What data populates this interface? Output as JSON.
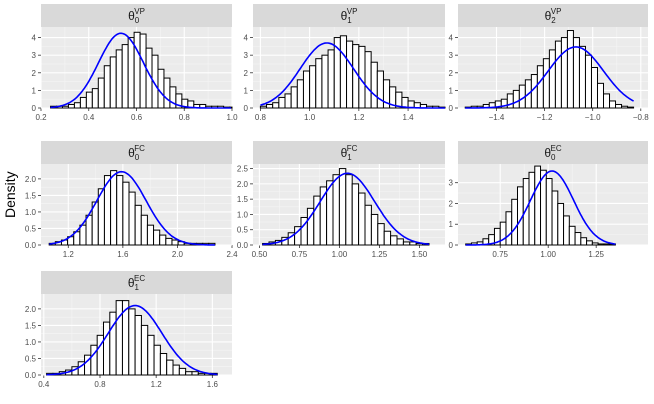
{
  "figure": {
    "ylabel": "Density"
  },
  "chart_data": [
    {
      "type": "histogram",
      "title_base": "θ",
      "title_sub": "0",
      "title_sup": "VP",
      "xlim": [
        0.2,
        1.0
      ],
      "ylim": [
        0,
        4.6
      ],
      "xticks": [
        0.2,
        0.4,
        0.6,
        0.8,
        1.0
      ],
      "xtick_labels": [
        "0.2",
        "0.4",
        "0.6",
        "0.8",
        "1.0"
      ],
      "yticks": [
        0,
        1,
        2,
        3,
        4
      ],
      "ytick_labels": [
        "0",
        "1",
        "2",
        "3",
        "4"
      ],
      "bins": {
        "start": 0.24,
        "width": 0.025,
        "heights": [
          0.1,
          0.1,
          0.1,
          0.2,
          0.3,
          0.6,
          0.9,
          1.1,
          1.7,
          2.4,
          2.9,
          3.3,
          3.6,
          4.0,
          4.3,
          4.2,
          3.4,
          3.0,
          2.2,
          1.7,
          1.2,
          0.8,
          0.5,
          0.4,
          0.2,
          0.2,
          0.1,
          0.1,
          0.1,
          0.05,
          0.05
        ]
      },
      "density": {
        "mean": 0.535,
        "sd": 0.094,
        "scale": 1.0
      }
    },
    {
      "type": "histogram",
      "title_base": "θ",
      "title_sub": "1",
      "title_sup": "VP",
      "xlim": [
        0.77,
        1.55
      ],
      "ylim": [
        0,
        4.6
      ],
      "xticks": [
        0.8,
        1.0,
        1.2,
        1.4
      ],
      "xtick_labels": [
        "0.8",
        "1.0",
        "1.2",
        "1.4"
      ],
      "yticks": [
        0,
        1,
        2,
        3,
        4
      ],
      "ytick_labels": [
        "0",
        "1",
        "2",
        "3",
        "4"
      ],
      "bins": {
        "start": 0.8,
        "width": 0.025,
        "heights": [
          0.1,
          0.2,
          0.3,
          0.6,
          0.8,
          1.2,
          1.6,
          2.1,
          2.4,
          2.8,
          3.0,
          3.3,
          4.0,
          4.1,
          3.8,
          3.6,
          3.5,
          3.2,
          2.6,
          2.1,
          1.6,
          1.2,
          0.9,
          0.6,
          0.4,
          0.3,
          0.2,
          0.1,
          0.1,
          0.05
        ]
      },
      "density": {
        "mean": 1.07,
        "sd": 0.108,
        "scale": 1.0
      }
    },
    {
      "type": "histogram",
      "title_base": "θ",
      "title_sub": "2",
      "title_sup": "VP",
      "xlim": [
        -1.56,
        -0.77
      ],
      "ylim": [
        0,
        4.6
      ],
      "xticks": [
        -1.4,
        -1.2,
        -1.0,
        -0.8
      ],
      "xtick_labels": [
        "−1.4",
        "−1.2",
        "−1.0",
        "−0.8"
      ],
      "yticks": [
        0,
        1,
        2,
        3,
        4
      ],
      "ytick_labels": [
        "0",
        "1",
        "2",
        "3",
        "4"
      ],
      "bins": {
        "start": -1.53,
        "width": 0.025,
        "heights": [
          0.05,
          0.1,
          0.1,
          0.2,
          0.3,
          0.4,
          0.5,
          0.8,
          1.0,
          1.3,
          1.6,
          1.9,
          2.4,
          2.8,
          3.3,
          3.8,
          4.0,
          4.4,
          4.0,
          3.5,
          3.0,
          2.3,
          1.4,
          0.8,
          0.4,
          0.2,
          0.1,
          0.05
        ]
      },
      "density": {
        "mean": -1.07,
        "sd": 0.115,
        "scale": 1.0
      }
    },
    {
      "type": "histogram",
      "title_base": "θ",
      "title_sub": "0",
      "title_sup": "FC",
      "xlim": [
        1.0,
        2.4
      ],
      "ylim": [
        0,
        2.45
      ],
      "xticks": [
        1.2,
        1.6,
        2.0,
        2.4
      ],
      "xtick_labels": [
        "1.2",
        "1.6",
        "2.0",
        "2.4"
      ],
      "yticks": [
        0,
        0.5,
        1.0,
        1.5,
        2.0
      ],
      "ytick_labels": [
        "0.0",
        "0.5",
        "1.0",
        "1.5",
        "2.0"
      ],
      "bins": {
        "start": 1.06,
        "width": 0.045,
        "heights": [
          0.05,
          0.1,
          0.15,
          0.25,
          0.4,
          0.6,
          0.9,
          1.3,
          1.7,
          2.1,
          2.25,
          2.1,
          1.9,
          1.6,
          1.2,
          0.9,
          0.6,
          0.45,
          0.3,
          0.2,
          0.15,
          0.1,
          0.05,
          0.05,
          0.05,
          0.05,
          0.05
        ]
      },
      "density": {
        "mean": 1.59,
        "sd": 0.18,
        "scale": 1.0
      }
    },
    {
      "type": "histogram",
      "title_base": "θ",
      "title_sub": "1",
      "title_sup": "FC",
      "xlim": [
        0.46,
        1.66
      ],
      "ylim": [
        0,
        2.65
      ],
      "xticks": [
        0.5,
        0.75,
        1.0,
        1.25,
        1.5
      ],
      "xtick_labels": [
        "0.50",
        "0.75",
        "1.00",
        "1.25",
        "1.50"
      ],
      "yticks": [
        0,
        0.5,
        1.0,
        1.5,
        2.0,
        2.5
      ],
      "ytick_labels": [
        "0.0",
        "0.5",
        "1.0",
        "1.5",
        "2.0",
        "2.5"
      ],
      "bins": {
        "start": 0.52,
        "width": 0.04,
        "heights": [
          0.05,
          0.1,
          0.15,
          0.25,
          0.4,
          0.6,
          0.9,
          1.2,
          1.6,
          1.9,
          2.1,
          2.3,
          2.5,
          2.3,
          2.0,
          1.7,
          1.3,
          1.0,
          0.7,
          0.45,
          0.3,
          0.2,
          0.1,
          0.1,
          0.05,
          0.05
        ]
      },
      "density": {
        "mean": 1.05,
        "sd": 0.17,
        "scale": 1.0
      }
    },
    {
      "type": "histogram",
      "title_base": "θ",
      "title_sub": "0",
      "title_sup": "EC",
      "xlim": [
        0.53,
        1.52
      ],
      "ylim": [
        0,
        3.9
      ],
      "xticks": [
        0.75,
        1.0,
        1.25
      ],
      "xtick_labels": [
        "0.75",
        "1.00",
        "1.25"
      ],
      "yticks": [
        0,
        1,
        2,
        3
      ],
      "ytick_labels": [
        "0",
        "1",
        "2",
        "3"
      ],
      "bins": {
        "start": 0.57,
        "width": 0.03,
        "heights": [
          0.05,
          0.1,
          0.15,
          0.3,
          0.5,
          0.8,
          1.1,
          1.6,
          2.2,
          2.8,
          3.2,
          3.5,
          3.8,
          3.6,
          3.2,
          2.6,
          2.0,
          1.4,
          0.9,
          0.6,
          0.35,
          0.2,
          0.1,
          0.05,
          0.05,
          0.05
        ]
      },
      "density": {
        "mean": 1.02,
        "sd": 0.112,
        "scale": 1.0
      }
    },
    {
      "type": "histogram",
      "title_base": "θ",
      "title_sub": "1",
      "title_sup": "EC",
      "xlim": [
        0.38,
        1.74
      ],
      "ylim": [
        0,
        2.45
      ],
      "xticks": [
        0.4,
        0.8,
        1.2,
        1.6
      ],
      "xtick_labels": [
        "0.4",
        "0.8",
        "1.2",
        "1.6"
      ],
      "yticks": [
        0,
        0.5,
        1.0,
        1.5,
        2.0
      ],
      "ytick_labels": [
        "0.0",
        "0.5",
        "1.0",
        "1.5",
        "2.0"
      ],
      "bins": {
        "start": 0.42,
        "width": 0.045,
        "heights": [
          0.05,
          0.05,
          0.1,
          0.15,
          0.25,
          0.4,
          0.6,
          0.9,
          1.2,
          1.6,
          1.9,
          2.25,
          2.25,
          2.0,
          1.8,
          1.5,
          1.2,
          0.9,
          0.65,
          0.45,
          0.3,
          0.2,
          0.1,
          0.1,
          0.05,
          0.05,
          0.05
        ]
      },
      "density": {
        "mean": 1.05,
        "sd": 0.19,
        "scale": 1.0
      }
    }
  ],
  "colors": {
    "panel_bg": "#ebebeb",
    "strip_bg": "#d9d9d9",
    "grid_major": "#ffffff",
    "grid_minor": "#f5f5f5",
    "bar_fill": "#ffffff",
    "bar_stroke": "#000000",
    "density_line": "#0000ff",
    "tick_text": "#4d4d4d"
  }
}
